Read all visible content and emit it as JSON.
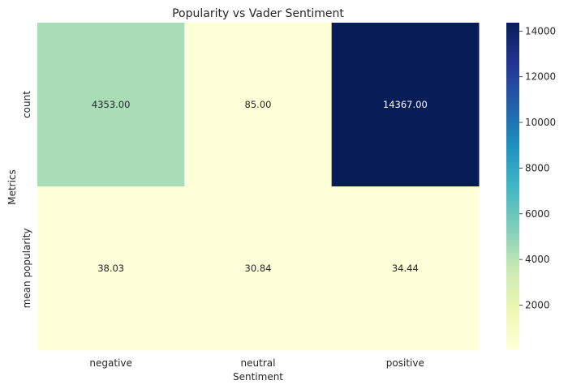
{
  "chart_data": {
    "type": "heatmap",
    "title": "Popularity vs Vader Sentiment",
    "xlabel": "Sentiment",
    "ylabel": "Metrics",
    "x_categories": [
      "negative",
      "neutral",
      "positive"
    ],
    "y_categories": [
      "count",
      "mean popularity"
    ],
    "values": [
      [
        4353.0,
        85.0,
        14367.0
      ],
      [
        38.03,
        30.84,
        34.44
      ]
    ],
    "value_labels": [
      [
        "4353.00",
        "85.00",
        "14367.00"
      ],
      [
        "38.03",
        "30.84",
        "34.44"
      ]
    ],
    "colormap": "YlGnBu",
    "colorbar": {
      "range": [
        30.84,
        14367.0
      ],
      "ticks": [
        2000,
        4000,
        6000,
        8000,
        10000,
        12000,
        14000
      ],
      "tick_labels": [
        "2000",
        "4000",
        "6000",
        "8000",
        "10000",
        "12000",
        "14000"
      ]
    },
    "grid": false,
    "legend": "colorbar-right"
  }
}
